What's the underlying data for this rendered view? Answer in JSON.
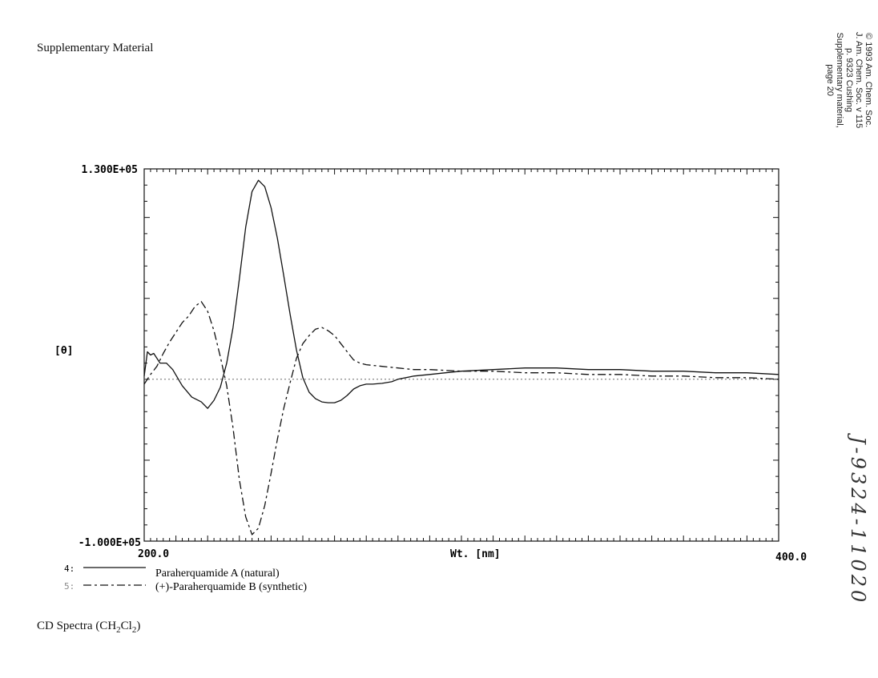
{
  "page": {
    "header": "Supplementary Material",
    "copyright_lines": [
      "© 1993 Am. Chem. Soc.",
      "J. Am. Chem. Soc. v 115",
      "p. 9323 Cushing",
      "Supplementary material,",
      "page 20"
    ],
    "handwritten_note": "J-9324-11020",
    "caption_prefix": "CD Spectra (CH",
    "caption_sub1": "2",
    "caption_mid": "Cl",
    "caption_sub2": "2",
    "caption_suffix": ")"
  },
  "chart_data": {
    "type": "line",
    "title": "",
    "xlabel": "Wt. [nm]",
    "ylabel": "[θ]",
    "ymax_label": "1.300E+05",
    "ymin_label": "-1.000E+05",
    "xmin_label": "200.0",
    "xmax_label": "400.0",
    "xlim": [
      200,
      400
    ],
    "ylim": [
      -100000,
      130000
    ],
    "baseline": 0,
    "series": [
      {
        "name": "Paraherquamide A (natural)",
        "legend_marker": "4:",
        "style": "solid",
        "x": [
          200,
          201,
          202,
          203,
          205,
          207,
          209,
          212,
          215,
          218,
          220,
          222,
          224,
          226,
          228,
          230,
          232,
          234,
          236,
          238,
          240,
          242,
          244,
          246,
          248,
          250,
          252,
          254,
          256,
          258,
          260,
          262,
          264,
          266,
          268,
          270,
          272,
          275,
          278,
          280,
          285,
          290,
          295,
          300,
          310,
          320,
          330,
          340,
          350,
          360,
          370,
          380,
          390,
          400
        ],
        "y": [
          2000,
          17000,
          15000,
          16000,
          10000,
          10000,
          6000,
          -4000,
          -11000,
          -14000,
          -18000,
          -13000,
          -5000,
          10000,
          32000,
          62000,
          94000,
          116000,
          123000,
          119000,
          106000,
          87000,
          64000,
          40000,
          18000,
          1000,
          -8000,
          -12000,
          -14000,
          -14500,
          -14500,
          -13000,
          -10000,
          -6000,
          -4000,
          -3000,
          -3000,
          -2500,
          -1500,
          0,
          2000,
          3000,
          4000,
          5000,
          6000,
          7000,
          7000,
          6000,
          6000,
          5000,
          5000,
          4000,
          4000,
          3000
        ]
      },
      {
        "name": "(+)-Paraherquamide B (synthetic)",
        "legend_marker": "5:",
        "style": "dashed",
        "x": [
          200,
          202,
          204,
          206,
          208,
          210,
          212,
          214,
          216,
          218,
          220,
          222,
          224,
          226,
          228,
          230,
          232,
          234,
          236,
          238,
          240,
          242,
          244,
          246,
          248,
          250,
          252,
          254,
          256,
          258,
          260,
          262,
          264,
          266,
          268,
          270,
          275,
          280,
          285,
          290,
          300,
          310,
          320,
          330,
          340,
          350,
          360,
          370,
          380,
          390,
          400
        ],
        "y": [
          -3000,
          3000,
          8000,
          16000,
          23000,
          29000,
          35000,
          39000,
          45000,
          48000,
          42000,
          30000,
          14000,
          -4000,
          -30000,
          -62000,
          -85000,
          -96000,
          -92000,
          -78000,
          -58000,
          -37000,
          -18000,
          -2000,
          13000,
          22000,
          27000,
          31000,
          32000,
          30000,
          27000,
          22000,
          17000,
          12000,
          10000,
          9000,
          8000,
          7000,
          6000,
          6000,
          5000,
          5000,
          4000,
          4000,
          3000,
          3000,
          2000,
          2000,
          1000,
          1000,
          0
        ]
      }
    ]
  }
}
